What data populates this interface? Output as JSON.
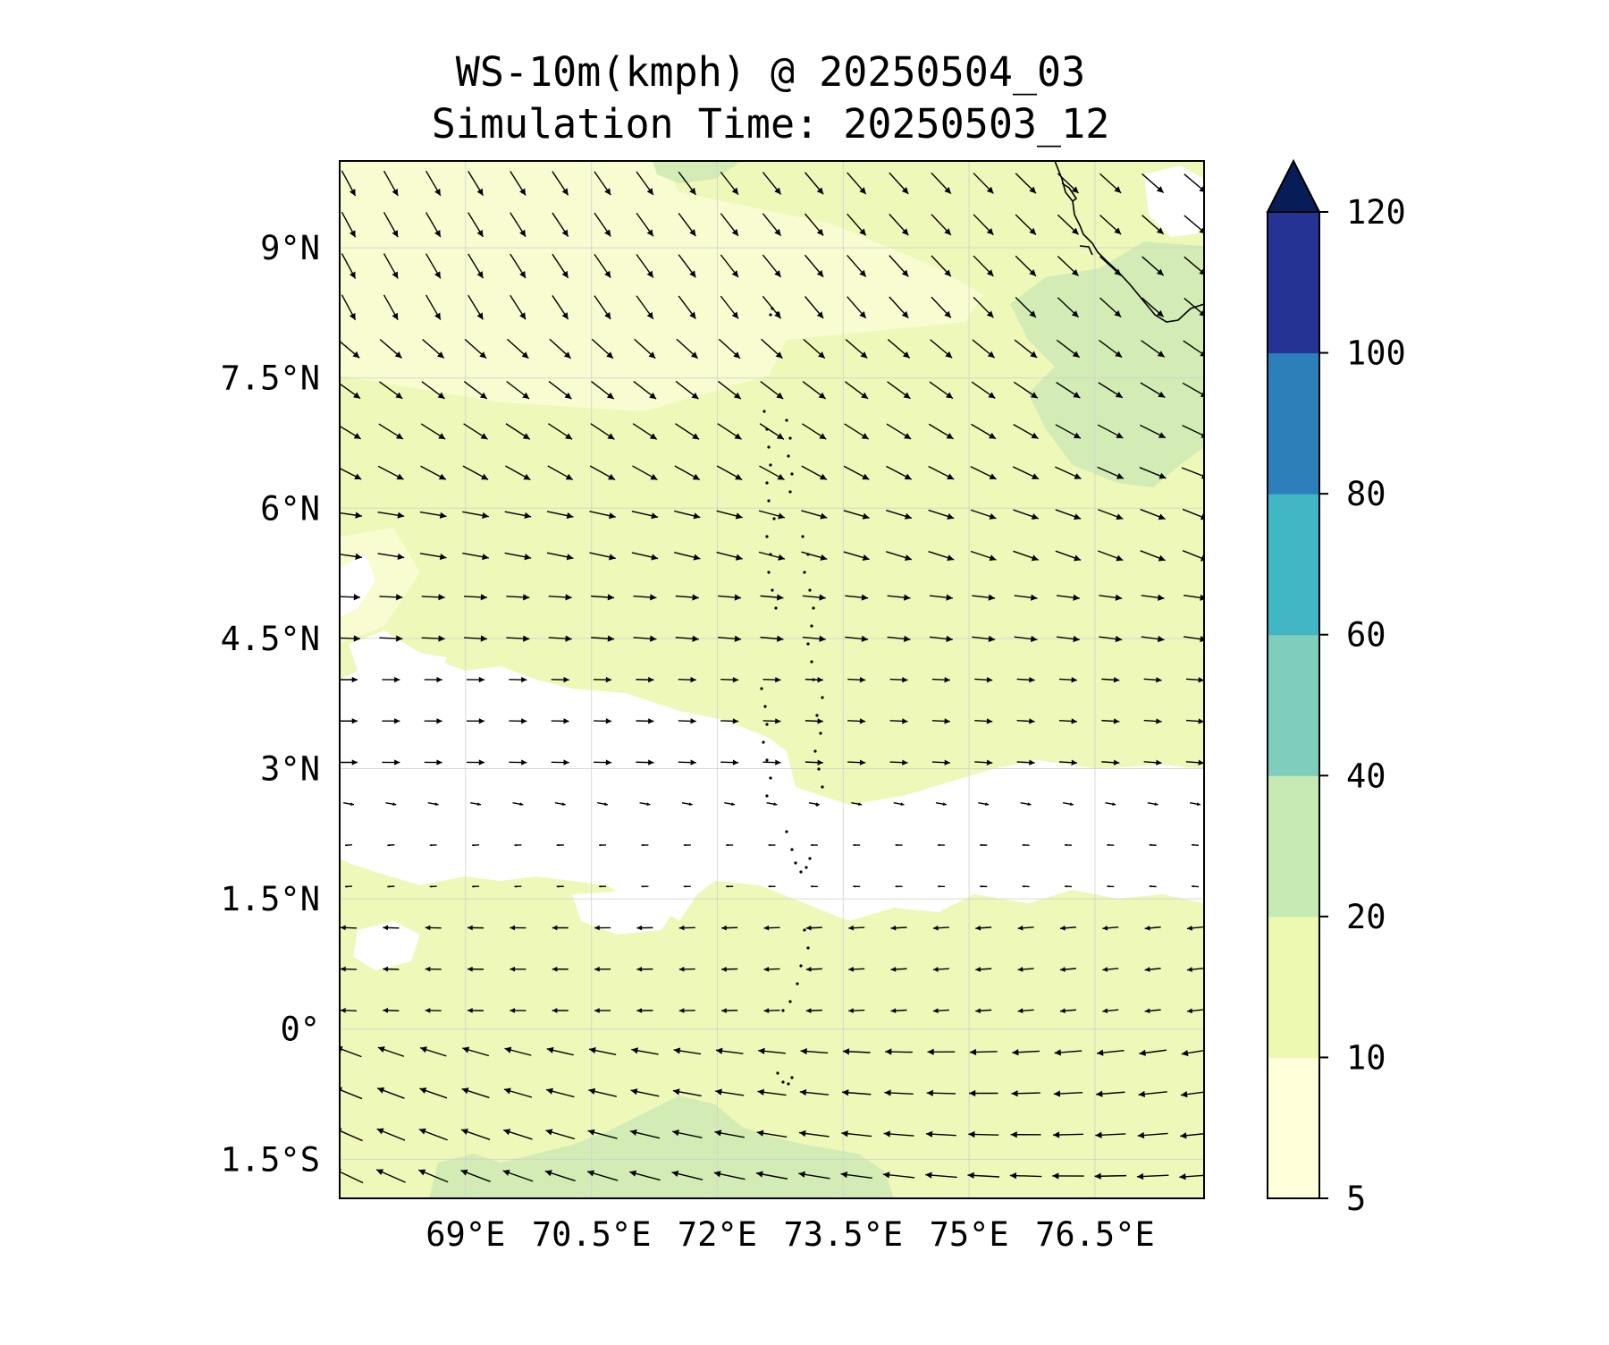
{
  "title": {
    "line1": "WS-10m(kmph) @ 20250504_03",
    "line2": "Simulation Time: 20250503_12"
  },
  "map": {
    "lon_range": [
      67.5,
      77.8
    ],
    "lat_range": [
      -1.95,
      10.0
    ],
    "x_ticks": [
      {
        "value": 69.0,
        "label": "69°E"
      },
      {
        "value": 70.5,
        "label": "70.5°E"
      },
      {
        "value": 72.0,
        "label": "72°E"
      },
      {
        "value": 73.5,
        "label": "73.5°E"
      },
      {
        "value": 75.0,
        "label": "75°E"
      },
      {
        "value": 76.5,
        "label": "76.5°E"
      }
    ],
    "y_ticks": [
      {
        "value": 9.0,
        "label": "9°N"
      },
      {
        "value": 7.5,
        "label": "7.5°N"
      },
      {
        "value": 6.0,
        "label": "6°N"
      },
      {
        "value": 4.5,
        "label": "4.5°N"
      },
      {
        "value": 3.0,
        "label": "3°N"
      },
      {
        "value": 1.5,
        "label": "1.5°N"
      },
      {
        "value": 0.0,
        "label": "0°"
      },
      {
        "value": -1.5,
        "label": "1.5°S"
      }
    ],
    "gridlines": true
  },
  "colorbar": {
    "levels": [
      {
        "value": 5,
        "label": "5"
      },
      {
        "value": 10,
        "label": "10"
      },
      {
        "value": 20,
        "label": "20"
      },
      {
        "value": 40,
        "label": "40"
      },
      {
        "value": 60,
        "label": "60"
      },
      {
        "value": 80,
        "label": "80"
      },
      {
        "value": 100,
        "label": "100"
      },
      {
        "value": 120,
        "label": "120"
      }
    ],
    "colors": [
      "#ffffd9",
      "#edf8b1",
      "#c7e9b4",
      "#7fcdbb",
      "#41b6c4",
      "#2c7fb8",
      "#253494"
    ],
    "extend_color": "#081d58",
    "extend": "max"
  },
  "field_colors": {
    "below_5": "#ffffff",
    "band_5_10": "#f8fcd0",
    "band_10_20": "#eef8b8",
    "band_20_40": "#d3ecb6"
  }
}
